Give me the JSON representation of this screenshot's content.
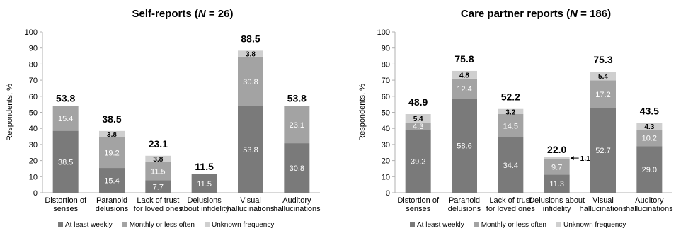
{
  "colors": {
    "weekly": "#7a7a7a",
    "monthly": "#a3a3a3",
    "unknown": "#cfcfcf",
    "axis": "#b0b0b0",
    "text": "#000000",
    "inner_label": "#ffffff"
  },
  "legend": {
    "items": [
      {
        "key": "weekly",
        "label": "At least weekly"
      },
      {
        "key": "monthly",
        "label": "Monthly or less often"
      },
      {
        "key": "unknown",
        "label": "Unknown frequency"
      }
    ]
  },
  "chart_data": [
    {
      "type": "bar",
      "stacked": true,
      "title": "Self-reports (N = 26)",
      "title_parts": [
        "Self-reports (",
        "N",
        " = 26)"
      ],
      "ylabel": "Respondents, %",
      "ylim": [
        0,
        100
      ],
      "yticks": [
        0,
        10,
        20,
        30,
        40,
        50,
        60,
        70,
        80,
        90,
        100
      ],
      "categories": [
        [
          "Distortion of",
          "senses"
        ],
        [
          "Paranoid",
          "delusions"
        ],
        [
          "Lack of trust",
          "for loved ones"
        ],
        [
          "Delusions",
          "about infidelity"
        ],
        [
          "Visual",
          "hallucinations"
        ],
        [
          "Auditory",
          "hallucinations"
        ]
      ],
      "series": [
        {
          "name": "At least weekly",
          "key": "weekly",
          "values": [
            38.5,
            15.4,
            7.7,
            11.5,
            53.8,
            30.8
          ],
          "labels": [
            "38.5",
            "15.4",
            "7.7",
            "11.5",
            "53.8",
            "30.8"
          ]
        },
        {
          "name": "Monthly or less often",
          "key": "monthly",
          "values": [
            15.4,
            19.2,
            11.5,
            0,
            30.8,
            23.1
          ],
          "labels": [
            "15.4",
            "19.2",
            "11.5",
            "",
            "30.8",
            "23.1"
          ]
        },
        {
          "name": "Unknown frequency",
          "key": "unknown",
          "values": [
            0,
            3.8,
            3.8,
            0,
            3.8,
            0
          ],
          "labels": [
            "",
            "3.8",
            "3.8",
            "",
            "3.8",
            ""
          ]
        }
      ],
      "totals": [
        "53.8",
        "38.5",
        "23.1",
        "11.5",
        "88.5",
        "53.8"
      ]
    },
    {
      "type": "bar",
      "stacked": true,
      "title": "Care partner reports (N = 186)",
      "title_parts": [
        "Care partner reports (",
        "N",
        " = 186)"
      ],
      "ylabel": "Respondents, %",
      "ylim": [
        0,
        100
      ],
      "yticks": [
        0,
        10,
        20,
        30,
        40,
        50,
        60,
        70,
        80,
        90,
        100
      ],
      "categories": [
        [
          "Distortion of",
          "senses"
        ],
        [
          "Paranoid",
          "delusions"
        ],
        [
          "Lack of trust",
          "for loved ones"
        ],
        [
          "Delusions about",
          "infidelity"
        ],
        [
          "Visual",
          "hallucinations"
        ],
        [
          "Auditory",
          "hallucinations"
        ]
      ],
      "series": [
        {
          "name": "At least weekly",
          "key": "weekly",
          "values": [
            39.2,
            58.6,
            34.4,
            11.3,
            52.7,
            29.0
          ],
          "labels": [
            "39.2",
            "58.6",
            "34.4",
            "11.3",
            "52.7",
            "29.0"
          ]
        },
        {
          "name": "Monthly or less often",
          "key": "monthly",
          "values": [
            4.3,
            12.4,
            14.5,
            9.7,
            17.2,
            10.2
          ],
          "labels": [
            "4.3",
            "12.4",
            "14.5",
            "9.7",
            "17.2",
            "10.2"
          ]
        },
        {
          "name": "Unknown frequency",
          "key": "unknown",
          "values": [
            5.4,
            4.8,
            3.2,
            1.1,
            5.4,
            4.3
          ],
          "labels": [
            "5.4",
            "4.8",
            "3.2",
            "",
            "5.4",
            "4.3"
          ]
        }
      ],
      "totals": [
        "48.9",
        "75.8",
        "52.2",
        "22.0",
        "75.3",
        "43.5"
      ],
      "annotations": [
        {
          "category_index": 3,
          "series_key": "unknown",
          "text": "1.1",
          "arrow": true
        }
      ]
    }
  ]
}
